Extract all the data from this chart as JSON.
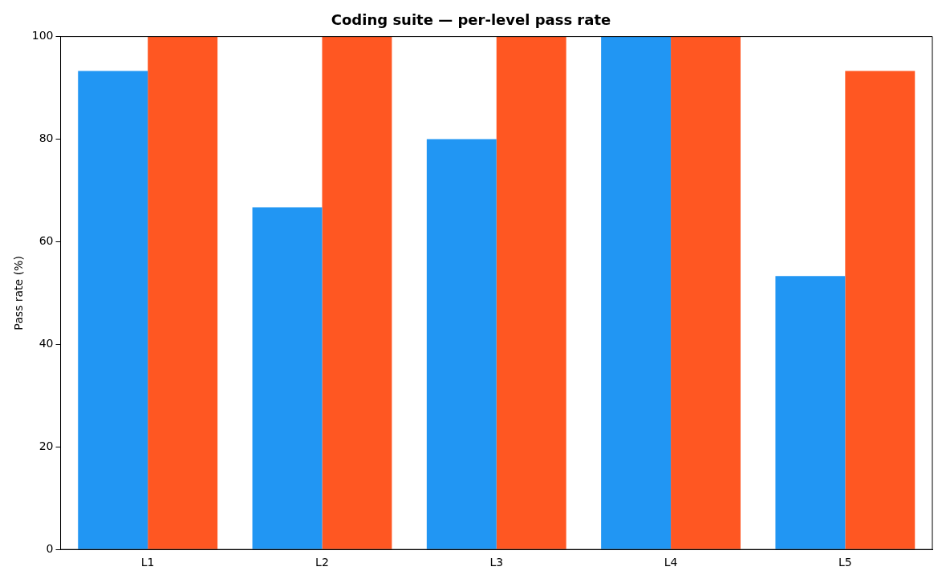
{
  "chart_data": {
    "type": "bar",
    "title": "Coding suite — per-level pass rate",
    "ylabel": "Pass rate (%)",
    "categories": [
      "L1",
      "L2",
      "L3",
      "L4",
      "L5"
    ],
    "series": [
      {
        "color": "#2196f3",
        "values": [
          93.3,
          66.7,
          80,
          100,
          53.3
        ]
      },
      {
        "color": "#ff5722",
        "values": [
          100,
          100,
          100,
          100,
          93.3
        ]
      }
    ],
    "ylim": [
      0,
      100
    ],
    "yticks": [
      0,
      20,
      40,
      60,
      80,
      100
    ],
    "grid": false,
    "legend": false
  }
}
